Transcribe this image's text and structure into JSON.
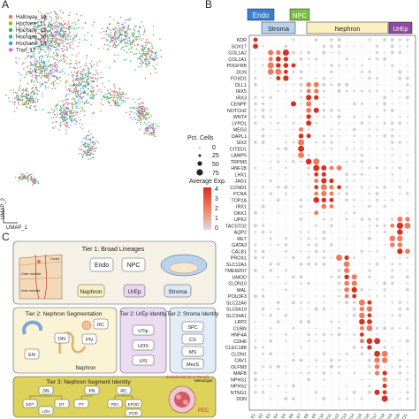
{
  "panels": {
    "a": "A",
    "b": "B",
    "c": "C"
  },
  "panel_a": {
    "legend": [
      {
        "label": "Halloway_16",
        "color": "#e8736c"
      },
      {
        "label": "Hochane_11",
        "color": "#b5a32a"
      },
      {
        "label": "Hochane_13",
        "color": "#39b54a"
      },
      {
        "label": "Hochane_16",
        "color": "#22b5b8"
      },
      {
        "label": "Hochane_18",
        "color": "#4a8fe0"
      },
      {
        "label": "Tran_17",
        "color": "#e06ad8"
      }
    ],
    "axis_y": "UMAP_2",
    "axis_x": "UMAP_1"
  },
  "panel_b": {
    "groups_top": [
      {
        "label": "Endo",
        "color": "#3a7fd0",
        "text_color": "#ffffff"
      },
      {
        "label": "NPC",
        "color": "#7ac143",
        "text_color": "#ffffff"
      }
    ],
    "groups_bottom": [
      {
        "label": "Stroma",
        "color": "#b9d3ee",
        "text_color": "#222222"
      },
      {
        "label": "Nephron",
        "color": "#faf0c0",
        "text_color": "#222222"
      },
      {
        "label": "UrEp",
        "color": "#8e4a9e",
        "text_color": "#ffffff"
      }
    ],
    "size_legend": {
      "title": "Pct. Cells",
      "values": [
        "0",
        "25",
        "50",
        "75"
      ]
    },
    "color_legend": {
      "title": "Average Exp.",
      "values": [
        "4",
        "3",
        "2",
        "1",
        "0"
      ]
    },
    "genes": [
      "KDR",
      "SOX17",
      "COL1A2",
      "COL1A1",
      "PDGFRB",
      "DCN",
      "FOXD1",
      "DLL1",
      "IRX5",
      "IRX3",
      "CENPF",
      "NOTCH2",
      "WNT4",
      "LYPD1",
      "MEG3",
      "DAPL1",
      "SIX2",
      "CITED1",
      "LAMP5",
      "TRPM3",
      "HNF1B",
      "LHX1",
      "JAG1",
      "CCND1",
      "PCNA",
      "TOP2A",
      "IRX1",
      "DKK1",
      "UPK2",
      "TACSTD2",
      "AQP2",
      "RET",
      "GATA3",
      "CALB1",
      "PROX1",
      "SLC12A1",
      "TMEM207",
      "UMOD",
      "CLDN10",
      "MAL",
      "POU3F3",
      "SLC22A6",
      "SLC6A19",
      "SLC34A1",
      "LRP2",
      "CUBN",
      "HNF4A",
      "CDH6",
      "CLEC18B",
      "CLDN1",
      "CAV1",
      "OLFM3",
      "MAFB",
      "NPHS1",
      "NPHS2",
      "NTNG1",
      "DDN"
    ],
    "n_columns": 21
  },
  "panel_c": {
    "tier1": "Tier 1: Broad Lineages",
    "tier1_items": [
      "Endo",
      "NPC",
      "Nephron",
      "UrEp",
      "Stroma"
    ],
    "tier2a": "Tier 2: Nephron Segmentation",
    "tier2a_items": [
      "RC",
      "DN",
      "PN",
      "EN"
    ],
    "tier2a_footer": "Nephron",
    "tier2b": "Tier 2: UrEp Identity",
    "tier2b_items": [
      "UTip",
      "UOS",
      "UIS"
    ],
    "tier2c": "Tier 2: Stroma Identity",
    "tier2c_items": [
      "SPC",
      "CS",
      "MS",
      "MesS"
    ],
    "tier3": "Tier 3: Nephron Segment Identity",
    "tier3_items": [
      "DN",
      "PN",
      "RC",
      "EDT",
      "LOH",
      "DT",
      "PT",
      "PEC",
      "EPOD",
      "POD"
    ],
    "tier3_labels": [
      "Endothelial (Non-Renal)",
      "Mesangial",
      "PEC"
    ],
    "kidney_labels": [
      "Cortex",
      "Outer medulla",
      "Inner medulla"
    ]
  }
}
